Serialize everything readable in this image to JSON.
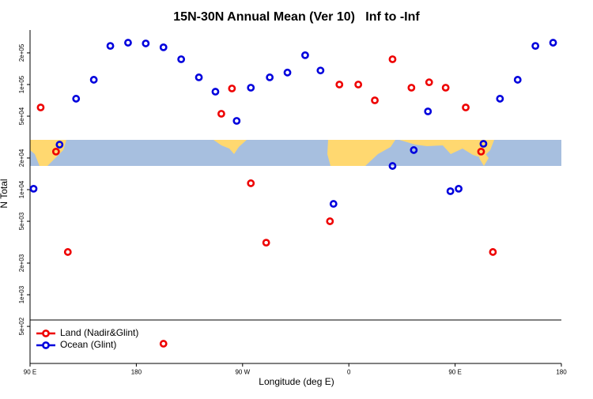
{
  "chart_data": {
    "type": "scatter",
    "title": "15N-30N Annual Mean (Ver 10)   Inf to -Inf",
    "xlabel": "Longitude (deg E)",
    "ylabel": "N Total",
    "xlim": [
      90,
      540
    ],
    "ylim": [
      222,
      330000
    ],
    "log_y": true,
    "legend": "bottom-left",
    "xticks": [
      {
        "value": 90,
        "label": "90 E"
      },
      180,
      {
        "value": 270,
        "label": "90 W"
      },
      {
        "value": 360,
        "label": "0"
      },
      {
        "value": 450,
        "label": "90 E"
      },
      {
        "value": 540,
        "label": "180"
      }
    ],
    "yticks": [
      {
        "value": 500,
        "label": "5e+02"
      },
      {
        "value": 1000,
        "label": "1e+03"
      },
      {
        "value": 2000,
        "label": "2e+03"
      },
      {
        "value": 5000,
        "label": "5e+03"
      },
      {
        "value": 10000,
        "label": "1e+04"
      },
      {
        "value": 20000,
        "label": "2e+04"
      },
      {
        "value": 50000,
        "label": "5e+04"
      },
      {
        "value": 100000,
        "label": "1e+05"
      },
      {
        "value": 200000,
        "label": "2e+05"
      }
    ],
    "series": [
      {
        "name": "Land (Nadir&Glint)",
        "color": "#ee0000",
        "x": [
          99,
          112,
          122,
          203,
          252,
          261,
          277,
          290,
          344,
          352,
          368,
          382,
          397,
          413,
          428,
          442,
          459,
          472,
          482
        ],
        "values": [
          60500,
          23000,
          2550,
          342,
          52700,
          91700,
          11500,
          3130,
          5000,
          100000,
          100000,
          70700,
          174000,
          93300,
          105000,
          93300,
          60500,
          23000,
          2550
        ]
      },
      {
        "name": "Ocean (Glint)",
        "color": "#0000dd",
        "x": [
          93,
          115,
          129,
          144,
          158,
          173,
          188,
          203,
          218,
          233,
          247,
          265,
          277,
          293,
          308,
          323,
          336,
          347,
          397,
          415,
          427,
          446,
          453,
          474,
          488,
          503,
          518,
          533
        ],
        "values": [
          10200,
          26800,
          73300,
          111000,
          233000,
          250000,
          246000,
          226000,
          174000,
          117000,
          85500,
          45100,
          93300,
          117000,
          130000,
          190000,
          136000,
          7320,
          16800,
          23800,
          55500,
          9660,
          10200,
          27300,
          73300,
          111000,
          233000,
          250000
        ]
      }
    ]
  }
}
